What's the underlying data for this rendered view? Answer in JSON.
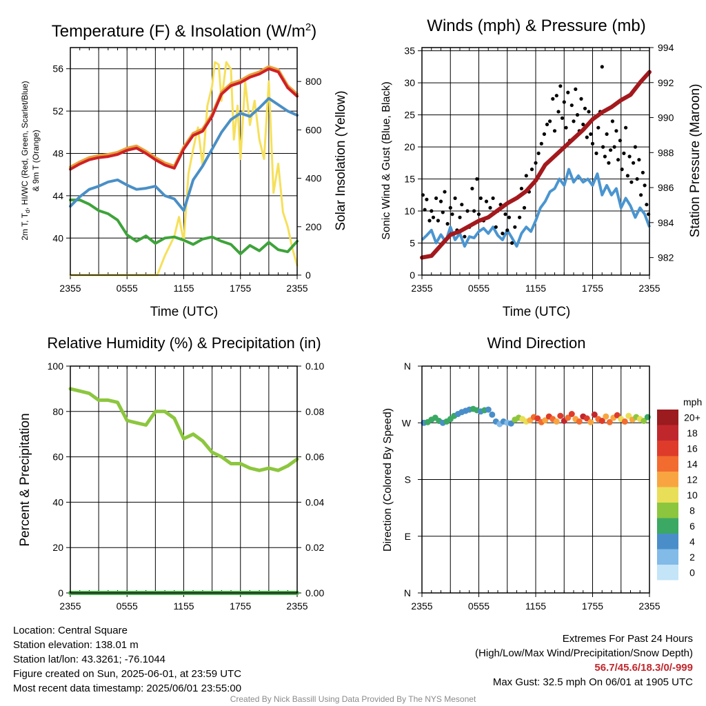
{
  "chart_data": [
    {
      "id": "temp",
      "type": "line",
      "title": "Temperature (F) & Insolation (W/m",
      "title_sup": "2",
      "title_close": ")",
      "xlabel": "Time (UTC)",
      "ylabel_lines": [
        "2m T, T",
        "d",
        ", HI/WC (Red, Green, Scarlet/Blue)",
        "& 9m T (Orange)"
      ],
      "ylabel_right": "Solar Insolation (Yellow)",
      "x_ticks": [
        "2355",
        "0555",
        "1155",
        "1755",
        "2355"
      ],
      "x_range_hours": [
        0,
        24
      ],
      "ylim": [
        36.5,
        58
      ],
      "y_ticks": [
        40,
        44,
        48,
        52,
        56
      ],
      "ylim_right": [
        0,
        940
      ],
      "y_ticks_right": [
        0,
        200,
        400,
        600,
        800
      ],
      "series": [
        {
          "name": "",
          "color": "#e8a13a",
          "axis": "left",
          "width": 4,
          "x": [
            0,
            1,
            2,
            3,
            4,
            5,
            6,
            7,
            8,
            9,
            10,
            11,
            12,
            13,
            14,
            15,
            16,
            17,
            18,
            19,
            20,
            21,
            22,
            23,
            24
          ],
          "y": [
            46.7,
            47.2,
            47.6,
            47.8,
            47.9,
            48.1,
            48.5,
            48.7,
            48.2,
            47.6,
            47.1,
            46.8,
            48.6,
            49.9,
            50.3,
            51.7,
            53.8,
            54.6,
            54.9,
            55.4,
            55.7,
            56.2,
            55.9,
            54.4,
            53.6
          ]
        },
        {
          "name": "",
          "color": "#cf2026",
          "axis": "left",
          "width": 4,
          "x": [
            0,
            1,
            2,
            3,
            4,
            5,
            6,
            7,
            8,
            9,
            10,
            11,
            12,
            13,
            14,
            15,
            16,
            17,
            18,
            19,
            20,
            21,
            22,
            23,
            24
          ],
          "y": [
            46.5,
            47.0,
            47.4,
            47.6,
            47.7,
            47.9,
            48.3,
            48.5,
            48.0,
            47.4,
            46.9,
            46.6,
            48.4,
            49.7,
            50.1,
            51.5,
            53.6,
            54.4,
            54.7,
            55.2,
            55.5,
            56.0,
            55.7,
            54.2,
            53.4
          ]
        },
        {
          "name": "",
          "color": "#4a8fc6",
          "axis": "left",
          "width": 4,
          "x": [
            0,
            1,
            2,
            3,
            4,
            5,
            6,
            7,
            8,
            9,
            10,
            11,
            12,
            13,
            14,
            15,
            16,
            17,
            18,
            19,
            20,
            21,
            22,
            23,
            24
          ],
          "y": [
            43.0,
            43.9,
            44.6,
            44.9,
            45.3,
            45.5,
            45.0,
            44.6,
            44.7,
            44.9,
            44.0,
            43.7,
            42.6,
            45.5,
            46.8,
            48.4,
            50.0,
            51.2,
            51.8,
            51.5,
            52.3,
            53.2,
            52.6,
            52.0,
            51.6
          ]
        },
        {
          "name": "",
          "color": "#3ea33a",
          "axis": "left",
          "width": 4,
          "x": [
            0,
            1,
            2,
            3,
            4,
            5,
            6,
            7,
            8,
            9,
            10,
            11,
            12,
            13,
            14,
            15,
            16,
            17,
            18,
            19,
            20,
            21,
            22,
            23,
            24
          ],
          "y": [
            43.6,
            43.6,
            43.2,
            42.6,
            42.3,
            41.7,
            40.3,
            39.7,
            40.2,
            39.5,
            40.0,
            40.1,
            39.8,
            39.4,
            39.9,
            40.1,
            39.7,
            39.4,
            38.5,
            39.3,
            38.8,
            39.6,
            38.9,
            38.7,
            39.7
          ]
        },
        {
          "name": "",
          "color": "#f6e05a",
          "axis": "right",
          "width": 3,
          "x": [
            0,
            2,
            4,
            6,
            8,
            9.2,
            10,
            11,
            11.5,
            12,
            12.5,
            13,
            13.5,
            14,
            14.5,
            15,
            15.3,
            15.7,
            16,
            16.5,
            17,
            17.3,
            17.7,
            18,
            18.5,
            19,
            19.5,
            20,
            20.5,
            21,
            21.5,
            22,
            22.5,
            23,
            23.5,
            24
          ],
          "y": [
            0,
            0,
            0,
            0,
            0,
            0,
            80,
            160,
            240,
            140,
            420,
            520,
            610,
            450,
            700,
            780,
            880,
            870,
            720,
            880,
            850,
            560,
            700,
            480,
            800,
            620,
            720,
            560,
            480,
            800,
            340,
            460,
            260,
            200,
            110,
            40
          ]
        }
      ]
    },
    {
      "id": "wind",
      "type": "scatter",
      "title": "Winds (mph) & Pressure (mb)",
      "xlabel": "Time (UTC)",
      "ylabel": "Sonic Wind & Gust (Blue, Black)",
      "ylabel_right": "Station Pressure (Maroon)",
      "x_ticks": [
        "2355",
        "0555",
        "1155",
        "1755",
        "2355"
      ],
      "x_range_hours": [
        0,
        24
      ],
      "ylim": [
        0,
        35.5
      ],
      "y_ticks": [
        0,
        5,
        10,
        15,
        20,
        25,
        30,
        35
      ],
      "ylim_right": [
        981,
        994.0
      ],
      "y_ticks_right": [
        982,
        984,
        986,
        988,
        990,
        992,
        994
      ],
      "series": [
        {
          "name": "",
          "color": "#4a95d0",
          "axis": "left",
          "kind": "line",
          "width": 4,
          "x": [
            0,
            0.5,
            1,
            1.5,
            2,
            2.5,
            3,
            3.5,
            4,
            4.5,
            5,
            5.5,
            6,
            6.5,
            7,
            7.5,
            8,
            8.5,
            9,
            9.5,
            10,
            10.5,
            11,
            11.5,
            12,
            12.5,
            13,
            13.5,
            14,
            14.5,
            15,
            15.5,
            16,
            16.5,
            17,
            17.5,
            18,
            18.5,
            19,
            19.5,
            20,
            20.5,
            21,
            21.5,
            22,
            22.5,
            23,
            23.5,
            24
          ],
          "y": [
            5.5,
            6.2,
            7.0,
            5.0,
            6.3,
            5.2,
            7.5,
            5.5,
            6.5,
            4.5,
            6.0,
            5.8,
            6.8,
            7.3,
            6.5,
            7.5,
            6.2,
            5.5,
            7.0,
            5.8,
            4.5,
            6.5,
            7.5,
            6.8,
            8.5,
            10.5,
            11.5,
            13.0,
            13.5,
            15.0,
            14.0,
            16.5,
            14.5,
            15.5,
            14.5,
            15.0,
            14.0,
            15.8,
            12.5,
            14.0,
            12.5,
            13.5,
            10.5,
            12.0,
            10.8,
            9.0,
            10.5,
            9.5,
            7.5
          ]
        },
        {
          "name": "",
          "color": "#a3191d",
          "axis": "right",
          "kind": "line",
          "width": 6,
          "x": [
            0,
            1,
            2,
            3,
            4,
            5,
            6,
            7,
            8,
            9,
            10,
            11,
            12,
            13,
            14,
            15,
            16,
            17,
            18,
            19,
            20,
            21,
            22,
            23,
            24
          ],
          "y": [
            982.0,
            982.1,
            982.7,
            983.3,
            983.5,
            983.8,
            984.1,
            984.3,
            984.7,
            985.1,
            985.4,
            985.8,
            986.4,
            987.3,
            987.8,
            988.3,
            988.8,
            989.3,
            989.9,
            990.3,
            990.6,
            991.0,
            991.3,
            992.0,
            992.6
          ]
        },
        {
          "name": "",
          "color": "#000000",
          "axis": "left",
          "kind": "points",
          "radius": 2.6,
          "x": [
            0.1,
            0.3,
            0.5,
            0.8,
            1.0,
            1.2,
            1.5,
            1.7,
            2.0,
            2.2,
            2.4,
            2.7,
            3.0,
            3.2,
            3.5,
            3.7,
            4.0,
            4.2,
            4.5,
            4.8,
            5.0,
            5.3,
            5.5,
            5.8,
            6.0,
            6.2,
            6.5,
            6.8,
            7.0,
            7.2,
            7.5,
            7.8,
            8.0,
            8.3,
            8.5,
            8.8,
            9.0,
            9.2,
            9.5,
            9.8,
            10.0,
            10.3,
            10.5,
            10.8,
            11.0,
            11.3,
            11.6,
            12.0,
            12.3,
            12.6,
            12.9,
            13.2,
            13.5,
            13.8,
            14.0,
            14.2,
            14.4,
            14.6,
            14.8,
            15.0,
            15.2,
            15.4,
            15.6,
            15.8,
            16.0,
            16.2,
            16.4,
            16.6,
            16.8,
            17.0,
            17.2,
            17.4,
            17.6,
            17.8,
            18.0,
            18.2,
            18.4,
            18.6,
            18.8,
            19.0,
            19.1,
            19.3,
            19.5,
            19.7,
            19.9,
            20.1,
            20.3,
            20.5,
            20.7,
            20.9,
            21.1,
            21.3,
            21.5,
            21.7,
            21.9,
            22.1,
            22.3,
            22.5,
            22.7,
            22.9,
            23.1,
            23.3,
            23.5,
            23.7,
            23.9
          ],
          "y": [
            12.5,
            10.2,
            11.8,
            8.5,
            10.0,
            9.0,
            12.0,
            8.5,
            11.5,
            9.8,
            13.0,
            8.0,
            10.5,
            9.5,
            12.0,
            7.0,
            9.0,
            11.0,
            6.0,
            10.0,
            7.5,
            13.5,
            10.0,
            15.0,
            9.5,
            12.0,
            8.5,
            11.5,
            9.0,
            10.5,
            12.0,
            7.5,
            10.0,
            11.0,
            6.5,
            9.5,
            7.0,
            9.0,
            5.0,
            7.5,
            12.0,
            9.0,
            13.5,
            10.5,
            15.5,
            13.0,
            16.5,
            17.5,
            19.0,
            20.5,
            22.0,
            23.5,
            24.0,
            27.5,
            22.5,
            28.0,
            25.5,
            29.5,
            24.5,
            27.0,
            23.0,
            28.5,
            21.0,
            26.5,
            24.0,
            29.0,
            25.0,
            22.5,
            27.5,
            23.5,
            26.0,
            21.5,
            25.5,
            22.0,
            20.5,
            24.5,
            19.0,
            23.0,
            25.5,
            32.5,
            20.0,
            18.5,
            22.0,
            17.5,
            19.5,
            24.0,
            20.0,
            22.5,
            18.0,
            21.0,
            16.5,
            19.0,
            23.0,
            15.5,
            18.5,
            14.5,
            17.5,
            20.0,
            15.0,
            18.0,
            12.5,
            16.0,
            14.0,
            11.0,
            9.5
          ]
        }
      ]
    },
    {
      "id": "rh",
      "type": "line",
      "title": "Relative Humidity (%) & Precipitation (in)",
      "xlabel": "",
      "ylabel": "Percent & Precipitation",
      "x_ticks": [
        "2355",
        "0555",
        "1155",
        "1755",
        "2355"
      ],
      "x_range_hours": [
        0,
        24
      ],
      "ylim": [
        0,
        100
      ],
      "y_ticks": [
        0,
        20,
        40,
        60,
        80,
        100
      ],
      "ylim_right": [
        0,
        0.1
      ],
      "y_ticks_right": [
        "0.00",
        "0.02",
        "0.04",
        "0.06",
        "0.08",
        "0.10"
      ],
      "series": [
        {
          "name": "",
          "color": "#8cc63e",
          "axis": "left",
          "width": 5,
          "x": [
            0,
            1,
            2,
            3,
            4,
            5,
            6,
            7,
            8,
            9,
            10,
            11,
            12,
            13,
            14,
            15,
            16,
            17,
            18,
            19,
            20,
            21,
            22,
            23,
            24
          ],
          "y": [
            90,
            89,
            88,
            85,
            85,
            84,
            76,
            75,
            74,
            80,
            80,
            77,
            68,
            70,
            67,
            62,
            60,
            57,
            57,
            55,
            54,
            55,
            54,
            56,
            59
          ]
        },
        {
          "name": "",
          "color": "#44a845",
          "axis": "right",
          "width": 6,
          "x": [
            0,
            24
          ],
          "y": [
            0,
            0
          ]
        }
      ]
    },
    {
      "id": "dir",
      "type": "scatter",
      "title": "Wind Direction",
      "xlabel": "",
      "ylabel": "Direction (Colored By Speed)",
      "x_ticks": [
        "2355",
        "0555",
        "1155",
        "1755",
        "2355"
      ],
      "x_range_hours": [
        0,
        24
      ],
      "y_ticks": [
        "N",
        "E",
        "S",
        "W",
        "N"
      ],
      "ylim_degrees": [
        0,
        360
      ],
      "points_hours": [
        0.2,
        0.6,
        1.0,
        1.4,
        1.8,
        2.2,
        2.6,
        3.0,
        3.4,
        3.8,
        4.2,
        4.6,
        5.0,
        5.4,
        5.8,
        6.2,
        6.6,
        7.0,
        7.4,
        7.8,
        8.2,
        8.6,
        9.0,
        9.4,
        9.8,
        10.2,
        10.6,
        11.0,
        11.4,
        11.8,
        12.2,
        12.6,
        13.0,
        13.4,
        13.8,
        14.2,
        14.6,
        15.0,
        15.4,
        15.8,
        16.2,
        16.6,
        17.0,
        17.4,
        17.8,
        18.2,
        18.6,
        19.0,
        19.4,
        19.8,
        20.2,
        20.6,
        21.0,
        21.4,
        21.8,
        22.2,
        22.6,
        23.0,
        23.4,
        23.8
      ],
      "points_degrees": [
        270,
        271,
        275,
        278,
        273,
        270,
        272,
        276,
        281,
        284,
        287,
        289,
        291,
        292,
        290,
        288,
        290,
        291,
        283,
        272,
        268,
        272,
        270,
        269,
        275,
        278,
        276,
        272,
        274,
        279,
        277,
        271,
        274,
        280,
        276,
        272,
        281,
        273,
        278,
        284,
        276,
        272,
        280,
        277,
        271,
        283,
        276,
        273,
        280,
        271,
        278,
        282,
        276,
        272,
        281,
        275,
        279,
        276,
        273,
        279
      ],
      "points_mph": [
        5,
        6,
        7,
        6,
        7,
        5,
        6,
        7,
        6,
        5,
        4,
        4,
        5,
        6,
        7,
        5,
        6,
        4,
        5,
        4,
        3,
        4,
        3,
        4,
        8,
        9,
        10,
        11,
        12,
        14,
        16,
        15,
        13,
        17,
        15,
        12,
        16,
        18,
        14,
        17,
        13,
        15,
        19,
        16,
        12,
        18,
        14,
        17,
        12,
        15,
        13,
        16,
        11,
        14,
        10,
        12,
        9,
        11,
        8,
        7
      ],
      "colorbar": {
        "title": "mph",
        "labels": [
          "20+",
          "18",
          "16",
          "14",
          "12",
          "10",
          "8",
          "6",
          "4",
          "2",
          "0"
        ],
        "colors": [
          "#9b1b1e",
          "#c0272d",
          "#de3b2b",
          "#f26b2f",
          "#f8a541",
          "#e9de57",
          "#8cc63e",
          "#3ba864",
          "#4a8ec9",
          "#82bae8",
          "#c4e4f8"
        ]
      }
    }
  ],
  "info": {
    "location": "Location: Central Square",
    "elevation": "Station elevation: 138.01 m",
    "latlon": "Station lat/lon: 43.3261; -76.1044",
    "created": "Figure created on Sun, 2025-06-01, at 23:59 UTC",
    "recent": "Most recent data timestamp: 2025/06/01 23:55:00"
  },
  "extremes": {
    "title": "Extremes For Past 24 Hours",
    "subtitle": "(High/Low/Max Wind/Precipitation/Snow Depth)",
    "values": "56.7/45.6/18.3/0/-999",
    "max_gust": "Max Gust: 32.5 mph On 06/01 at 1905 UTC"
  },
  "credit": "Created By Nick Bassill Using Data Provided By The NYS Mesonet"
}
